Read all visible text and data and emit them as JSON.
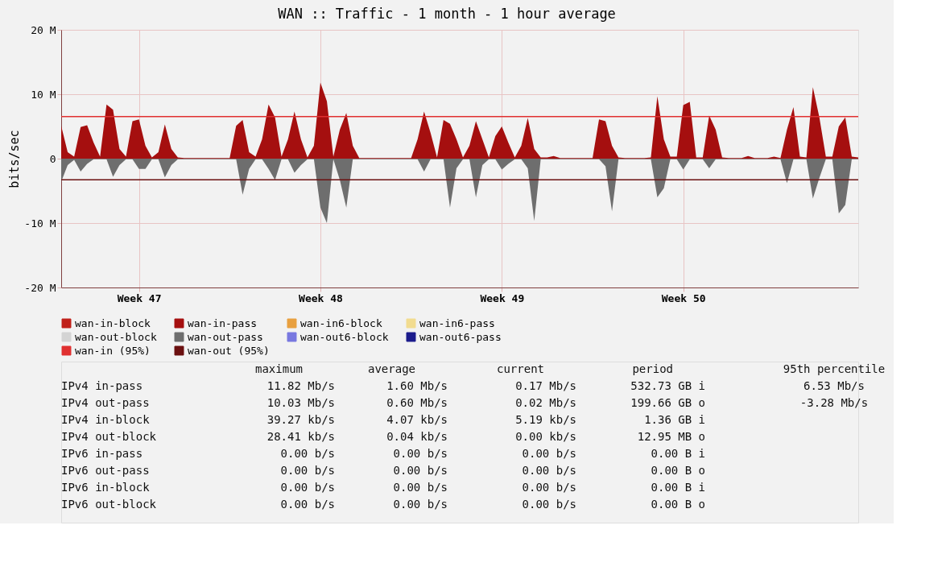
{
  "chart_data": {
    "type": "area",
    "title": "WAN :: Traffic - 1 month - 1 hour average",
    "ylabel": "bits/sec",
    "legend": "bottom",
    "grid": true,
    "categories": [
      null,
      null,
      null,
      null,
      null,
      null,
      null,
      null,
      null,
      null,
      null,
      null,
      "Week 47",
      null,
      null,
      null,
      null,
      null,
      null,
      null,
      null,
      null,
      null,
      null,
      null,
      null,
      null,
      null,
      null,
      null,
      null,
      null,
      null,
      null,
      null,
      null,
      null,
      null,
      null,
      null,
      "Week 48",
      null,
      null,
      null,
      null,
      null,
      null,
      null,
      null,
      null,
      null,
      null,
      null,
      null,
      null,
      null,
      null,
      null,
      null,
      null,
      null,
      null,
      null,
      null,
      null,
      null,
      null,
      null,
      "Week 49",
      null,
      null,
      null,
      null,
      null,
      null,
      null,
      null,
      null,
      null,
      null,
      null,
      null,
      null,
      null,
      null,
      null,
      null,
      null,
      null,
      null,
      null,
      null,
      null,
      null,
      null,
      null,
      "Week 50",
      null,
      null,
      null,
      null,
      null,
      null,
      null,
      null,
      null,
      null,
      null,
      null,
      null,
      null,
      null,
      null,
      null,
      null,
      null,
      null,
      null,
      null,
      null,
      null,
      null,
      null,
      null
    ],
    "ylim": [
      -20,
      20
    ],
    "yticks": [
      {
        "value": -20,
        "label": "-20 M"
      },
      {
        "value": -10,
        "label": "-10 M"
      },
      0,
      {
        "value": 10,
        "label": "10 M"
      },
      {
        "value": 20,
        "label": "20 M"
      }
    ],
    "series": [
      {
        "name": "wan-in-block",
        "color": "#c0201a",
        "values": [
          null,
          null,
          null,
          null,
          null,
          null,
          null,
          null,
          null,
          null,
          null,
          null,
          null,
          null,
          null,
          null,
          null,
          null,
          null,
          null,
          null,
          null,
          null,
          null,
          null,
          null,
          null,
          null,
          null,
          null,
          null,
          null,
          null,
          null,
          null,
          null,
          null,
          null,
          null,
          null,
          null,
          null,
          null,
          null,
          null,
          null,
          null,
          null,
          null,
          null,
          null,
          null,
          null,
          null,
          null,
          null,
          null,
          null,
          null,
          null,
          null,
          null,
          null,
          null,
          null,
          null,
          null,
          null,
          null,
          null,
          null,
          null,
          null,
          null,
          null,
          null,
          null,
          null,
          null,
          null,
          null,
          null,
          null,
          null,
          null,
          null,
          null,
          null,
          null,
          null,
          null,
          null,
          null,
          null,
          null,
          null,
          null,
          null,
          null,
          null,
          null,
          null,
          null,
          null,
          null,
          null,
          null,
          null,
          null,
          null,
          null,
          null,
          null,
          null,
          null,
          null,
          null,
          null,
          null,
          null,
          null,
          null,
          null,
          null
        ]
      },
      {
        "name": "wan-in-pass",
        "color": "#a50f0f",
        "values": [
          5.1,
          1.0,
          0.3,
          4.9,
          5.2,
          2.5,
          0.3,
          8.4,
          7.6,
          1.5,
          0.3,
          5.8,
          6.1,
          2.0,
          0.2,
          1.0,
          5.3,
          1.5,
          0.2,
          0.1,
          0.1,
          0.1,
          0.1,
          0.1,
          0.1,
          0.1,
          0.1,
          5.1,
          6.0,
          1.0,
          0.3,
          3.0,
          8.4,
          6.4,
          0.3,
          3.0,
          7.3,
          3.0,
          0.2,
          2.0,
          11.8,
          8.9,
          0.3,
          4.5,
          7.1,
          2.0,
          0.1,
          0.1,
          0.1,
          0.1,
          0.1,
          0.1,
          0.1,
          0.1,
          0.1,
          3.0,
          7.3,
          4.0,
          0.2,
          6.0,
          5.4,
          3.0,
          0.2,
          2.0,
          5.8,
          3.0,
          0.2,
          3.5,
          5.0,
          2.5,
          0.2,
          2.0,
          6.3,
          1.5,
          0.2,
          0.2,
          0.4,
          0.1,
          0.1,
          0.1,
          0.1,
          0.1,
          0.1,
          6.1,
          5.8,
          2.0,
          0.2,
          0.1,
          0.1,
          0.1,
          0.1,
          0.2,
          9.7,
          3.0,
          0.3,
          0.3,
          8.3,
          8.8,
          0.2,
          0.2,
          6.7,
          4.5,
          0.2,
          0.1,
          0.1,
          0.1,
          0.4,
          0.1,
          0.1,
          0.1,
          0.3,
          0.1,
          4.5,
          8.0,
          0.3,
          0.2,
          11.1,
          6.4,
          0.3,
          0.3,
          5.0,
          6.4,
          0.3,
          0.2
        ]
      },
      {
        "name": "wan-in6-block",
        "color": "#e8a040",
        "values": [
          null,
          null,
          null,
          null,
          null,
          null,
          null,
          null,
          null,
          null,
          null,
          null,
          null,
          null,
          null,
          null,
          null,
          null,
          null,
          null,
          null,
          null,
          null,
          null,
          null,
          null,
          null,
          null,
          null,
          null,
          null,
          null,
          null,
          null,
          null,
          null,
          null,
          null,
          null,
          null,
          null,
          null,
          null,
          null,
          null,
          null,
          null,
          null,
          null,
          null,
          null,
          null,
          null,
          null,
          null,
          null,
          null,
          null,
          null,
          null,
          null,
          null,
          null,
          null,
          null,
          null,
          null,
          null,
          null,
          null,
          null,
          null,
          null,
          null,
          null,
          null,
          null,
          null,
          null,
          null,
          null,
          null,
          null,
          null,
          null,
          null,
          null,
          null,
          null,
          null,
          null,
          null,
          null,
          null,
          null,
          null,
          null,
          null,
          null,
          null,
          null,
          null,
          null,
          null,
          null,
          null,
          null,
          null,
          null,
          null,
          null,
          null,
          null,
          null,
          null,
          null,
          null,
          null,
          null,
          null,
          null,
          null,
          null,
          null
        ]
      },
      {
        "name": "wan-in6-pass",
        "color": "#f2dc90",
        "values": [
          null,
          null,
          null,
          null,
          null,
          null,
          null,
          null,
          null,
          null,
          null,
          null,
          null,
          null,
          null,
          null,
          null,
          null,
          null,
          null,
          null,
          null,
          null,
          null,
          null,
          null,
          null,
          null,
          null,
          null,
          null,
          null,
          null,
          null,
          null,
          null,
          null,
          null,
          null,
          null,
          null,
          null,
          null,
          null,
          null,
          null,
          null,
          null,
          null,
          null,
          null,
          null,
          null,
          null,
          null,
          null,
          null,
          null,
          null,
          null,
          null,
          null,
          null,
          null,
          null,
          null,
          null,
          null,
          null,
          null,
          null,
          null,
          null,
          null,
          null,
          null,
          null,
          null,
          null,
          null,
          null,
          null,
          null,
          null,
          null,
          null,
          null,
          null,
          null,
          null,
          null,
          null,
          null,
          null,
          null,
          null,
          null,
          null,
          null,
          null,
          null,
          null,
          null,
          null,
          null,
          null,
          null,
          null,
          null,
          null,
          null,
          null,
          null,
          null,
          null,
          null,
          null,
          null,
          null,
          null,
          null,
          null,
          null,
          null
        ]
      },
      {
        "name": "wan-out-block",
        "color": "#d4d4d4",
        "values": [
          null,
          null,
          null,
          null,
          null,
          null,
          null,
          null,
          null,
          null,
          null,
          null,
          null,
          null,
          null,
          null,
          null,
          null,
          null,
          null,
          null,
          null,
          null,
          null,
          null,
          null,
          null,
          null,
          null,
          null,
          null,
          null,
          null,
          null,
          null,
          null,
          null,
          null,
          null,
          null,
          null,
          null,
          null,
          null,
          null,
          null,
          null,
          null,
          null,
          null,
          null,
          null,
          null,
          null,
          null,
          null,
          null,
          null,
          null,
          null,
          null,
          null,
          null,
          null,
          null,
          null,
          null,
          null,
          null,
          null,
          null,
          null,
          null,
          null,
          null,
          null,
          null,
          null,
          null,
          null,
          null,
          null,
          null,
          null,
          null,
          null,
          null,
          null,
          null,
          null,
          null,
          null,
          null,
          null,
          null,
          null,
          null,
          null,
          null,
          null,
          null,
          null,
          null,
          null,
          null,
          null,
          null,
          null,
          null,
          null,
          null,
          null,
          null,
          null,
          null,
          null,
          null,
          null,
          null,
          null,
          null,
          null,
          null,
          null
        ]
      },
      {
        "name": "wan-out-pass",
        "color": "#6e6e6e",
        "values": [
          -3.6,
          -1.0,
          -0.2,
          -2.0,
          -0.8,
          -0.1,
          -0.1,
          -0.1,
          -2.8,
          -1.0,
          -0.1,
          -0.1,
          -1.6,
          -1.6,
          -0.1,
          -0.1,
          -2.9,
          -1.0,
          -0.1,
          -0.1,
          -0.1,
          -0.1,
          -0.1,
          -0.1,
          -0.1,
          -0.1,
          -0.1,
          -0.1,
          -5.6,
          -1.6,
          -0.1,
          -0.1,
          -1.6,
          -3.3,
          -0.1,
          -0.1,
          -2.2,
          -1.0,
          -0.1,
          -0.1,
          -7.6,
          -10.0,
          -0.1,
          -3.3,
          -7.6,
          -0.1,
          -0.1,
          -0.1,
          -0.1,
          -0.1,
          -0.1,
          -0.1,
          -0.1,
          -0.1,
          -0.1,
          -0.1,
          -2.0,
          -0.1,
          -0.1,
          -0.1,
          -7.6,
          -1.5,
          -0.1,
          -0.1,
          -6.0,
          -1.0,
          -0.1,
          -0.1,
          -1.7,
          -0.8,
          -0.1,
          -0.1,
          -1.5,
          -9.7,
          -0.1,
          -0.1,
          -0.1,
          -0.1,
          -0.1,
          -0.1,
          -0.1,
          -0.1,
          -0.1,
          -0.1,
          -1.2,
          -8.2,
          -0.1,
          -0.1,
          -0.1,
          -0.1,
          -0.1,
          -0.1,
          -6.0,
          -4.6,
          -0.1,
          -0.1,
          -1.7,
          -0.1,
          -0.1,
          -0.1,
          -1.5,
          -0.1,
          -0.1,
          -0.1,
          -0.1,
          -0.1,
          -0.1,
          -0.1,
          -0.1,
          -0.1,
          -0.1,
          -0.1,
          -3.8,
          -0.1,
          -0.1,
          -0.1,
          -6.2,
          -3.0,
          -0.1,
          -0.1,
          -8.5,
          -7.2,
          -0.1,
          -0.1
        ]
      },
      {
        "name": "wan-out6-block",
        "color": "#7878e0",
        "values": [
          null,
          null,
          null,
          null,
          null,
          null,
          null,
          null,
          null,
          null,
          null,
          null,
          null,
          null,
          null,
          null,
          null,
          null,
          null,
          null,
          null,
          null,
          null,
          null,
          null,
          null,
          null,
          null,
          null,
          null,
          null,
          null,
          null,
          null,
          null,
          null,
          null,
          null,
          null,
          null,
          null,
          null,
          null,
          null,
          null,
          null,
          null,
          null,
          null,
          null,
          null,
          null,
          null,
          null,
          null,
          null,
          null,
          null,
          null,
          null,
          null,
          null,
          null,
          null,
          null,
          null,
          null,
          null,
          null,
          null,
          null,
          null,
          null,
          null,
          null,
          null,
          null,
          null,
          null,
          null,
          null,
          null,
          null,
          null,
          null,
          null,
          null,
          null,
          null,
          null,
          null,
          null,
          null,
          null,
          null,
          null,
          null,
          null,
          null,
          null,
          null,
          null,
          null,
          null,
          null,
          null,
          null,
          null,
          null,
          null,
          null,
          null,
          null,
          null,
          null,
          null,
          null,
          null,
          null,
          null,
          null,
          null,
          null,
          null
        ]
      },
      {
        "name": "wan-out6-pass",
        "color": "#1c1c8c",
        "values": [
          null,
          null,
          null,
          null,
          null,
          null,
          null,
          null,
          null,
          null,
          null,
          null,
          null,
          null,
          null,
          null,
          null,
          null,
          null,
          null,
          null,
          null,
          null,
          null,
          null,
          null,
          null,
          null,
          null,
          null,
          null,
          null,
          null,
          null,
          null,
          null,
          null,
          null,
          null,
          null,
          null,
          null,
          null,
          null,
          null,
          null,
          null,
          null,
          null,
          null,
          null,
          null,
          null,
          null,
          null,
          null,
          null,
          null,
          null,
          null,
          null,
          null,
          null,
          null,
          null,
          null,
          null,
          null,
          null,
          null,
          null,
          null,
          null,
          null,
          null,
          null,
          null,
          null,
          null,
          null,
          null,
          null,
          null,
          null,
          null,
          null,
          null,
          null,
          null,
          null,
          null,
          null,
          null,
          null,
          null,
          null,
          null,
          null,
          null,
          null,
          null,
          null,
          null,
          null,
          null,
          null,
          null,
          null,
          null,
          null,
          null,
          null,
          null,
          null,
          null,
          null,
          null,
          null,
          null,
          null,
          null,
          null,
          null,
          null
        ]
      }
    ],
    "ref_lines": [
      {
        "axis": "y",
        "value": 6.53,
        "label": "wan-in (95%)",
        "color": "#e03030"
      },
      {
        "axis": "y",
        "value": -3.28,
        "label": "wan-out (95%)",
        "color": "#6b1010"
      }
    ],
    "annotations": [
      "maximum",
      "average",
      "current",
      "period",
      "95th percentile",
      "IPv4 in-pass",
      "11.82 Mb/s",
      "1.60 Mb/s",
      "0.17 Mb/s",
      "532.73 GB i",
      "IPv4 out-pass",
      "10.03 Mb/s",
      "0.60 Mb/s",
      "0.02 Mb/s",
      "199.66 GB o",
      "IPv4 in-block",
      "39.27 kb/s",
      "4.07 kb/s",
      "5.19 kb/s",
      "1.36 GB i",
      "IPv4 out-block",
      "28.41 kb/s",
      "0.04 kb/s",
      "0.00 kb/s",
      "12.95 MB o",
      "IPv6 in-pass",
      "0.00 b/s",
      "0.00 b/s",
      "0.00 b/s",
      "0.00 B i",
      "IPv6 out-pass",
      "0.00 b/s",
      "0.00 b/s",
      "0.00 b/s",
      "0.00 B o",
      "IPv6 in-block",
      "0.00 b/s",
      "0.00 b/s",
      "0.00 b/s",
      "0.00 B i",
      "IPv6 out-block",
      "0.00 b/s",
      "0.00 b/s",
      "0.00 b/s",
      "0.00 B o",
      "6.53 Mb/s",
      "-3.28 Mb/s"
    ]
  }
}
